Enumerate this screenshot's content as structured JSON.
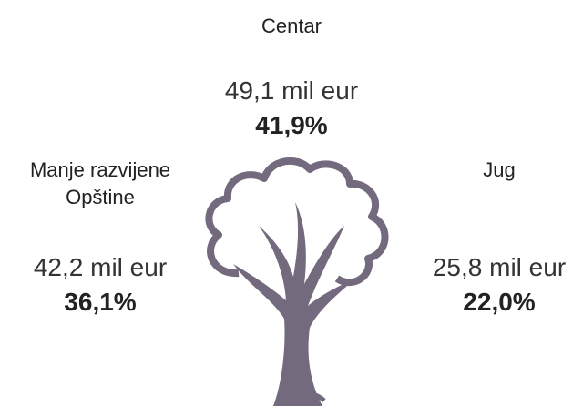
{
  "regions": [
    {
      "name_lines": [
        "Centar"
      ],
      "amount": "49,1 mil eur",
      "percent": "41,9%"
    },
    {
      "name_lines": [
        "Manje razvijene",
        "Opštine"
      ],
      "amount": "42,2 mil eur",
      "percent": "36,1%"
    },
    {
      "name_lines": [
        "Jug"
      ],
      "amount": "25,8 mil eur",
      "percent": "22,0%"
    }
  ]
}
